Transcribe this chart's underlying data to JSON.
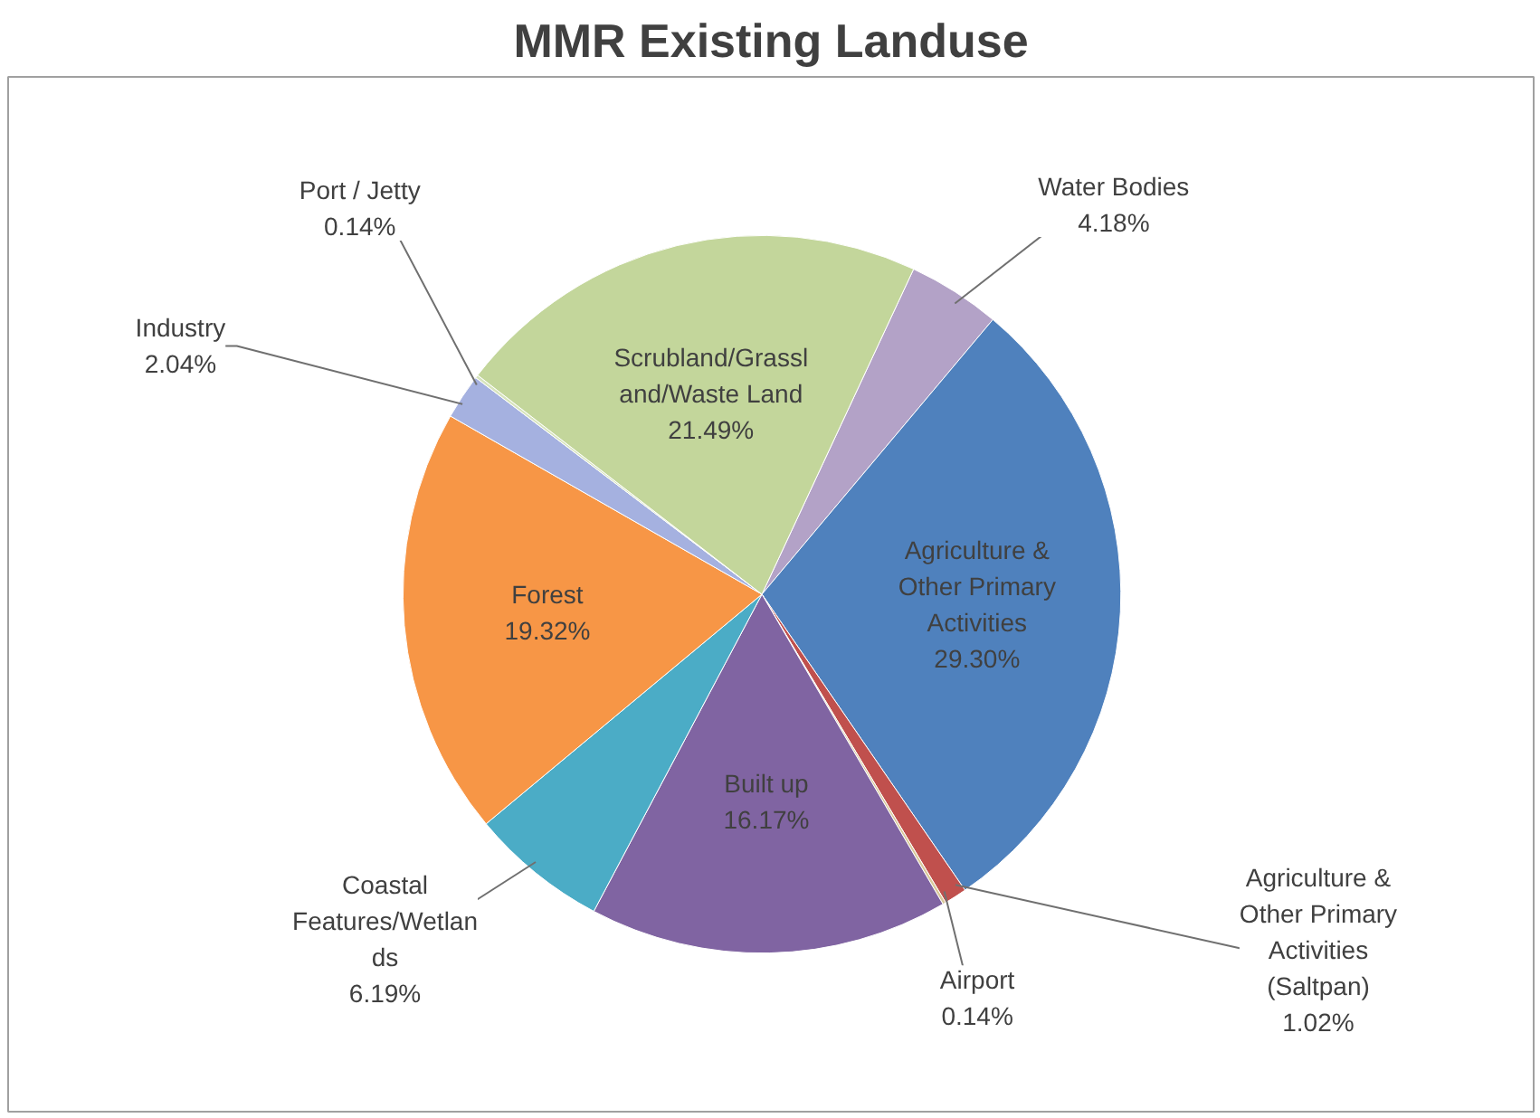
{
  "chart_data": {
    "type": "pie",
    "title": "MMR Existing Landuse",
    "categories": [
      "Water Bodies",
      "Agriculture &\nOther Primary\nActivities",
      "Agriculture &\nOther Primary\nActivities\n(Saltpan)",
      "Airport",
      "Built up",
      "Coastal\nFeatures/Wetlan\nds",
      "Forest",
      "Industry",
      "Port / Jetty",
      "Scrubland/Grassl\nand/Waste Land"
    ],
    "values": [
      4.18,
      29.3,
      1.02,
      0.14,
      16.17,
      6.19,
      19.32,
      2.04,
      0.14,
      21.49
    ],
    "value_labels": [
      "4.18%",
      "29.30%",
      "1.02%",
      "0.14%",
      "16.17%",
      "6.19%",
      "19.32%",
      "2.04%",
      "0.14%",
      "21.49%"
    ],
    "colors": [
      "#b3a2c7",
      "#4f81bd",
      "#c0504d",
      "#d9c99a",
      "#8064a2",
      "#4bacc6",
      "#f79646",
      "#a5b1e0",
      "#d7e4bd",
      "#c3d69b"
    ]
  }
}
